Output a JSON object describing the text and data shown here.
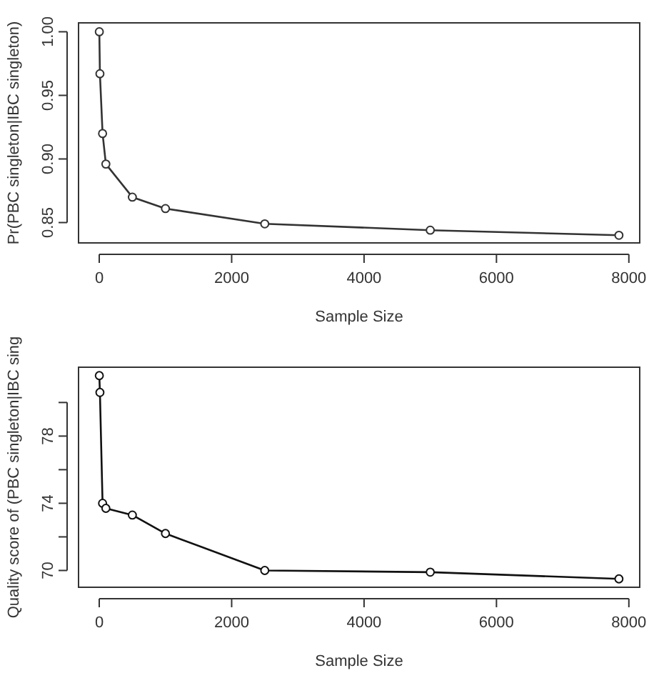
{
  "chart_data": [
    {
      "type": "line",
      "x": [
        1,
        10,
        50,
        100,
        500,
        1000,
        2500,
        5000,
        7850
      ],
      "xlabel": "Sample Size",
      "ylabel": "Pr(PBC singleton|IBC singleton)",
      "xlim": [
        -313,
        8164
      ],
      "xticks": [
        0,
        2000,
        4000,
        6000,
        8000
      ],
      "ylim": [
        0.834,
        1.007
      ],
      "yticks": [
        {
          "value": 0.85,
          "label": "0.85"
        },
        {
          "value": 0.9,
          "label": "0.90"
        },
        {
          "value": 0.95,
          "label": "0.95"
        },
        {
          "value": 1,
          "label": "1.00"
        }
      ],
      "marker": "circle",
      "line_style": "solid",
      "series": [
        {
          "color": "#333333",
          "values": [
            1.0,
            0.967,
            0.92,
            0.896,
            0.87,
            0.861,
            0.849,
            0.844,
            0.84
          ]
        }
      ]
    },
    {
      "type": "line",
      "x": [
        1,
        10,
        50,
        100,
        500,
        1000,
        2500,
        5000,
        7850
      ],
      "xlabel": "Sample Size",
      "ylabel": "Quality score of (PBC singleton|IBC sing",
      "xlim": [
        -313,
        8164
      ],
      "xticks": [
        0,
        2000,
        4000,
        6000,
        8000
      ],
      "ylim": [
        69.0,
        82.1
      ],
      "yticks": [
        70,
        {
          "value": 72,
          "label": null
        },
        74,
        {
          "value": 76,
          "label": null
        },
        78,
        {
          "value": 80,
          "label": null
        }
      ],
      "marker": "circle",
      "line_style": "solid",
      "series": [
        {
          "color": "#111111",
          "values": [
            81.6,
            80.6,
            74.0,
            73.7,
            73.3,
            72.2,
            70.0,
            69.9,
            69.5
          ]
        }
      ]
    }
  ]
}
